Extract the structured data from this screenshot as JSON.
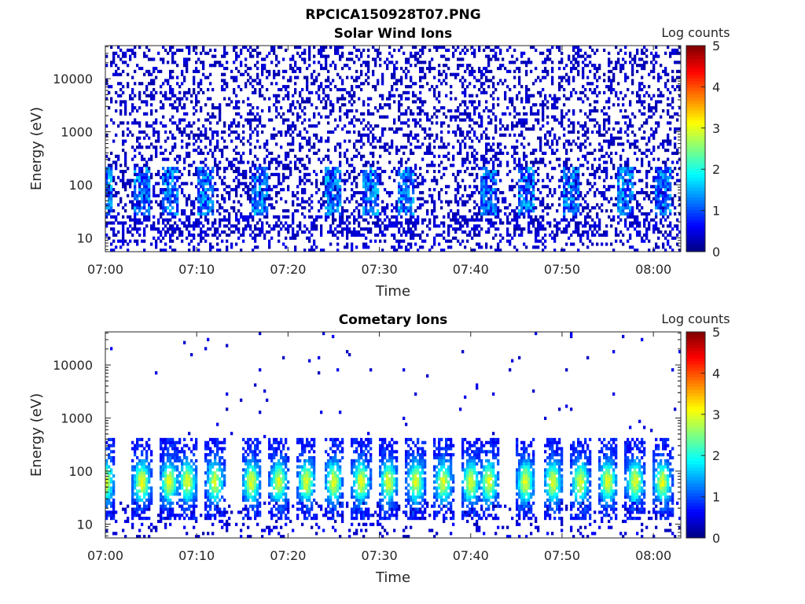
{
  "figure": {
    "title": "RPCICA150928T07.PNG"
  },
  "chart_data": [
    {
      "type": "heatmap",
      "title": "Solar Wind Ions",
      "xlabel": "Time",
      "ylabel": "Energy (eV)",
      "xlim": [
        "07:00",
        "08:03"
      ],
      "ylim": [
        5.5,
        42000
      ],
      "yscale": "log",
      "xticks": [
        "07:00",
        "07:10",
        "07:20",
        "07:30",
        "07:40",
        "07:50",
        "08:00"
      ],
      "yticks": [
        10,
        100,
        1000,
        10000
      ],
      "ytick_labels": [
        "10",
        "100",
        "1000",
        "10000"
      ],
      "colorbar": {
        "label": "Log counts",
        "range": [
          0,
          5
        ],
        "ticks": [
          "0",
          "1",
          "2",
          "3",
          "4",
          "5"
        ],
        "colormap": "jet"
      },
      "profile": {
        "description": "sparse scattered low counts (~0.2-0.5) across 10 eV - 30 keV; denser, brighter (~1-1.7) patches at 30-200 eV in periodic bursts",
        "burst_centers": [
          "07:00",
          "07:04",
          "07:07",
          "07:11",
          "07:17",
          "07:25",
          "07:29",
          "07:33",
          "07:42",
          "07:46",
          "07:51",
          "07:57",
          "08:01"
        ]
      }
    },
    {
      "type": "heatmap",
      "title": "Cometary Ions",
      "xlabel": "Time",
      "ylabel": "Energy (eV)",
      "xlim": [
        "07:00",
        "08:03"
      ],
      "ylim": [
        5.5,
        42000
      ],
      "yscale": "log",
      "xticks": [
        "07:00",
        "07:10",
        "07:20",
        "07:30",
        "07:40",
        "07:50",
        "08:00"
      ],
      "yticks": [
        10,
        100,
        1000,
        10000
      ],
      "ytick_labels": [
        "10",
        "100",
        "1000",
        "10000"
      ],
      "colorbar": {
        "label": "Log counts",
        "range": [
          0,
          5
        ],
        "ticks": [
          "0",
          "1",
          "2",
          "3",
          "4",
          "5"
        ],
        "colormap": "jet"
      },
      "profile": {
        "description": "periodic plumes of cometary ions between ~15 and ~400 eV peaking near 40-100 eV at log counts ~2-2.8; isolated counts up to ~20 keV",
        "burst_centers": [
          "07:00",
          "07:04",
          "07:07",
          "07:09",
          "07:12",
          "07:16",
          "07:19",
          "07:22",
          "07:25",
          "07:28",
          "07:31",
          "07:34",
          "07:37",
          "07:40",
          "07:42",
          "07:46",
          "07:49",
          "07:52",
          "07:55",
          "07:58",
          "08:01"
        ]
      }
    }
  ]
}
